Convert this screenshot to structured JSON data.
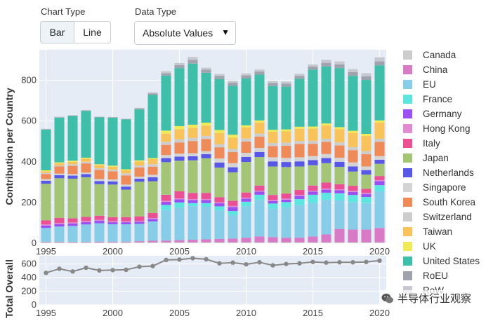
{
  "controls": {
    "chart_type_label": "Chart Type",
    "bar_label": "Bar",
    "line_label": "Line",
    "data_type_label": "Data Type",
    "data_type_value": "Absolute Values",
    "dropdown_icon": "triangle-down-icon"
  },
  "watermark": {
    "text": "半导体行业观察",
    "icon": "wechat-icon"
  },
  "chart_data": [
    {
      "type": "bar",
      "stacked": true,
      "title": "",
      "xlabel": "",
      "ylabel": "Contribution per Country",
      "ylim": [
        0,
        950
      ],
      "yticks": [
        0,
        200,
        400,
        600,
        800
      ],
      "xticks": [
        1995,
        2000,
        2005,
        2010,
        2015,
        2020
      ],
      "grid": true,
      "legend_position": "right",
      "x": [
        1995,
        1996,
        1997,
        1998,
        1999,
        2000,
        2001,
        2002,
        2003,
        2004,
        2005,
        2006,
        2007,
        2008,
        2009,
        2010,
        2011,
        2012,
        2013,
        2014,
        2015,
        2016,
        2017,
        2018,
        2019,
        2020
      ],
      "series": [
        {
          "name": "Canada",
          "color": "#cccccc",
          "values": [
            5,
            5,
            5,
            5,
            5,
            5,
            5,
            5,
            5,
            5,
            5,
            5,
            5,
            5,
            5,
            5,
            5,
            5,
            5,
            5,
            5,
            5,
            5,
            5,
            5,
            5
          ]
        },
        {
          "name": "China",
          "color": "#d97ac7",
          "values": [
            2,
            2,
            2,
            2,
            3,
            3,
            3,
            5,
            7,
            8,
            10,
            12,
            14,
            16,
            18,
            22,
            28,
            25,
            22,
            22,
            28,
            38,
            65,
            62,
            62,
            70
          ]
        },
        {
          "name": "EU",
          "color": "#88cde8",
          "values": [
            68,
            75,
            78,
            85,
            90,
            85,
            85,
            85,
            95,
            150,
            160,
            165,
            160,
            140,
            115,
            155,
            180,
            140,
            150,
            160,
            165,
            170,
            140,
            135,
            130,
            180
          ]
        },
        {
          "name": "France",
          "color": "#5de6e0",
          "values": [
            0,
            0,
            0,
            0,
            0,
            0,
            0,
            0,
            0,
            25,
            25,
            15,
            18,
            20,
            20,
            22,
            25,
            25,
            25,
            30,
            40,
            35,
            35,
            35,
            30,
            30
          ]
        },
        {
          "name": "Germany",
          "color": "#9b50f2",
          "values": [
            12,
            12,
            12,
            12,
            12,
            10,
            10,
            10,
            12,
            15,
            15,
            15,
            15,
            15,
            20,
            15,
            15,
            12,
            12,
            15,
            15,
            15,
            15,
            15,
            15,
            20
          ]
        },
        {
          "name": "Hong Kong",
          "color": "#df8dd0",
          "values": [
            5,
            5,
            5,
            5,
            5,
            5,
            5,
            5,
            5,
            5,
            5,
            5,
            5,
            5,
            5,
            5,
            5,
            5,
            5,
            5,
            5,
            5,
            5,
            5,
            5,
            5
          ]
        },
        {
          "name": "Italy",
          "color": "#eb4f94",
          "values": [
            20,
            25,
            20,
            20,
            20,
            20,
            20,
            22,
            25,
            30,
            35,
            30,
            30,
            25,
            25,
            25,
            25,
            25,
            25,
            25,
            25,
            30,
            25,
            25,
            20,
            20
          ]
        },
        {
          "name": "Japan",
          "color": "#a4c576",
          "values": [
            180,
            195,
            195,
            195,
            155,
            160,
            135,
            170,
            155,
            160,
            150,
            160,
            170,
            145,
            140,
            150,
            140,
            140,
            130,
            115,
            100,
            95,
            85,
            70,
            70,
            60
          ]
        },
        {
          "name": "Netherlands",
          "color": "#5857e6",
          "values": [
            15,
            15,
            15,
            15,
            15,
            15,
            15,
            15,
            20,
            20,
            20,
            20,
            20,
            25,
            25,
            25,
            25,
            25,
            25,
            25,
            25,
            25,
            25,
            25,
            22,
            20
          ]
        },
        {
          "name": "Singapore",
          "color": "#d4d4d4",
          "values": [
            8,
            8,
            8,
            8,
            10,
            10,
            10,
            10,
            12,
            15,
            15,
            15,
            15,
            20,
            20,
            20,
            20,
            20,
            20,
            20,
            20,
            20,
            20,
            20,
            18,
            18
          ]
        },
        {
          "name": "South Korea",
          "color": "#ef8b59",
          "values": [
            25,
            35,
            40,
            45,
            45,
            40,
            45,
            45,
            40,
            50,
            55,
            60,
            60,
            55,
            55,
            55,
            55,
            55,
            60,
            65,
            60,
            60,
            60,
            60,
            60,
            70
          ]
        },
        {
          "name": "Switzerland",
          "color": "#cdcdcd",
          "values": [
            5,
            5,
            8,
            8,
            8,
            8,
            10,
            10,
            12,
            15,
            15,
            15,
            15,
            15,
            15,
            15,
            15,
            15,
            15,
            15,
            15,
            15,
            15,
            15,
            15,
            15
          ]
        },
        {
          "name": "Taiwan",
          "color": "#f8c35a",
          "values": [
            8,
            10,
            12,
            15,
            15,
            15,
            15,
            20,
            25,
            40,
            50,
            50,
            50,
            55,
            55,
            55,
            55,
            55,
            55,
            60,
            60,
            65,
            65,
            70,
            75,
            80
          ]
        },
        {
          "name": "UK",
          "color": "#f1ea58",
          "values": [
            5,
            5,
            5,
            5,
            5,
            5,
            5,
            5,
            5,
            15,
            15,
            15,
            15,
            15,
            15,
            10,
            10,
            10,
            10,
            10,
            10,
            10,
            10,
            10,
            10,
            10
          ]
        },
        {
          "name": "United States",
          "color": "#3fbfaa",
          "values": [
            200,
            220,
            220,
            230,
            230,
            235,
            245,
            250,
            310,
            270,
            285,
            300,
            245,
            250,
            240,
            230,
            225,
            215,
            210,
            235,
            280,
            280,
            290,
            270,
            265,
            270
          ]
        },
        {
          "name": "RoEU",
          "color": "#a0a2ad",
          "values": [
            2,
            2,
            2,
            2,
            2,
            2,
            2,
            5,
            8,
            12,
            15,
            18,
            15,
            15,
            15,
            15,
            15,
            15,
            15,
            15,
            15,
            18,
            18,
            18,
            18,
            20
          ]
        },
        {
          "name": "RoW",
          "color": "#c7c9d0",
          "values": [
            2,
            2,
            2,
            2,
            2,
            2,
            2,
            3,
            5,
            10,
            10,
            15,
            10,
            10,
            10,
            10,
            10,
            10,
            10,
            10,
            10,
            15,
            15,
            15,
            15,
            20
          ]
        }
      ]
    },
    {
      "type": "line",
      "title": "",
      "ylabel": "Total Overall",
      "ylim": [
        0,
        720
      ],
      "yticks": [
        0,
        200,
        400,
        600
      ],
      "xticks": [
        1995,
        2000,
        2005,
        2010,
        2015,
        2020
      ],
      "grid": true,
      "color": "#888888",
      "x": [
        1995,
        1996,
        1997,
        1998,
        1999,
        2000,
        2001,
        2002,
        2003,
        2004,
        2005,
        2006,
        2007,
        2008,
        2009,
        2010,
        2011,
        2012,
        2013,
        2014,
        2015,
        2016,
        2017,
        2018,
        2019,
        2020
      ],
      "values": [
        470,
        530,
        490,
        545,
        505,
        510,
        515,
        560,
        570,
        660,
        665,
        685,
        670,
        610,
        620,
        595,
        625,
        580,
        600,
        610,
        630,
        620,
        625,
        625,
        630,
        650
      ]
    }
  ]
}
